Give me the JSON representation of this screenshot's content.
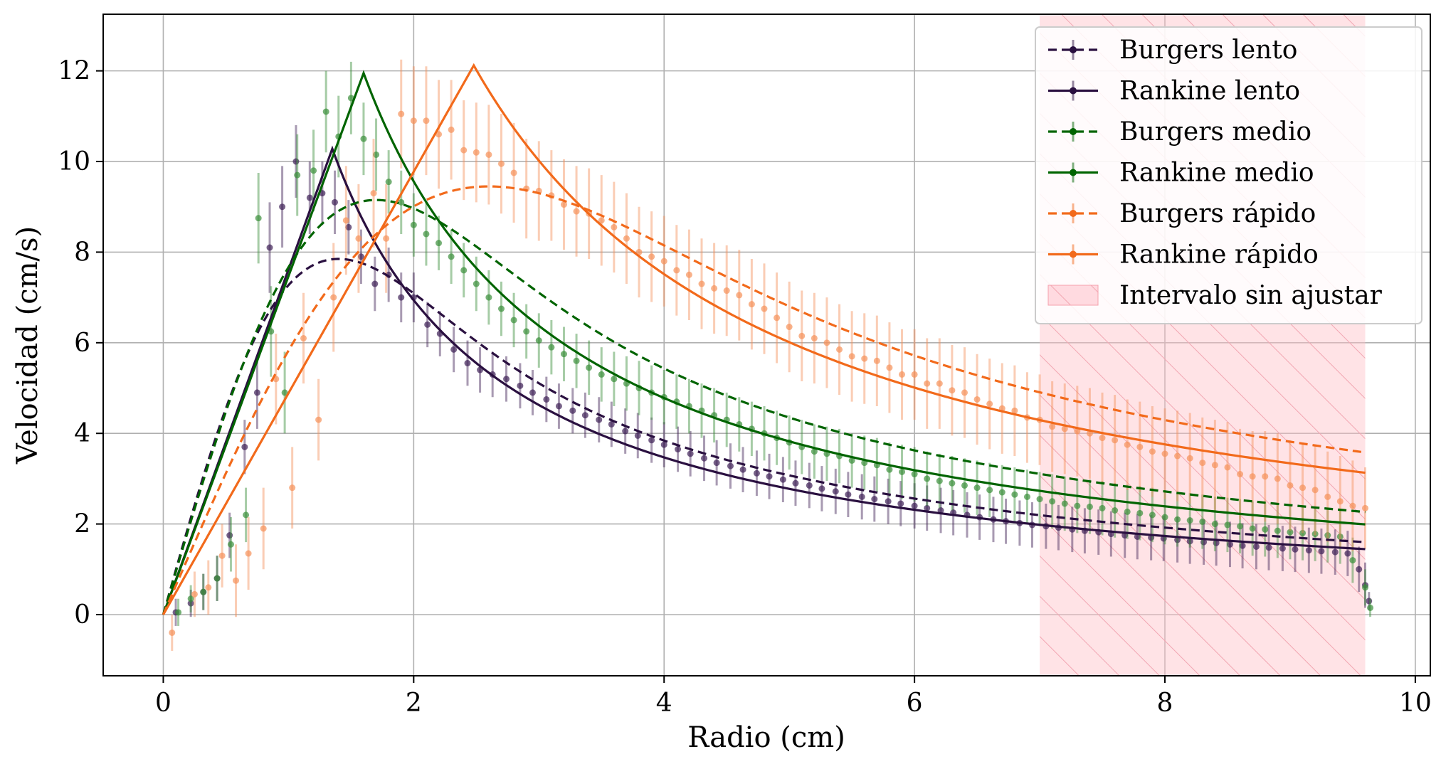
{
  "chart_data": {
    "type": "line",
    "xlabel": "Radio (cm)",
    "ylabel": "Velocidad (cm/s)",
    "xlim": [
      -0.48,
      10.12
    ],
    "ylim": [
      -1.35,
      13.25
    ],
    "xticks": [
      0,
      2,
      4,
      6,
      8,
      10
    ],
    "yticks": [
      0,
      2,
      4,
      6,
      8,
      10,
      12
    ],
    "grid": true,
    "legend_position": "top-right",
    "shaded_region": {
      "label": "Intervalo sin ajustar",
      "x_start": 7.0,
      "x_end": 9.6,
      "color": "#ffc0c8",
      "hatch": "diagonal"
    },
    "series": [
      {
        "name": "Burgers lento",
        "model": "burgers",
        "style": "dashed",
        "color": "#2a1040",
        "peak_r": 1.4,
        "peak_v": 7.85,
        "x_end": 9.6
      },
      {
        "name": "Rankine lento",
        "model": "rankine",
        "style": "solid",
        "color": "#2a1040",
        "peak_r": 1.35,
        "peak_v": 10.28,
        "x_end": 9.6
      },
      {
        "name": "Burgers medio",
        "model": "burgers",
        "style": "dashed",
        "color": "#006400",
        "peak_r": 1.7,
        "peak_v": 9.15,
        "x_end": 9.6
      },
      {
        "name": "Rankine medio",
        "model": "rankine",
        "style": "solid",
        "color": "#006400",
        "peak_r": 1.6,
        "peak_v": 11.95,
        "x_end": 9.6
      },
      {
        "name": "Burgers rápido",
        "model": "burgers",
        "style": "dashed",
        "color": "#f26a1b",
        "peak_r": 2.6,
        "peak_v": 9.45,
        "x_end": 9.6
      },
      {
        "name": "Rankine rápido",
        "model": "rankine",
        "style": "solid",
        "color": "#f26a1b",
        "peak_r": 2.48,
        "peak_v": 12.12,
        "x_end": 9.6
      }
    ],
    "measurements": [
      {
        "name": "lento",
        "color": "#3d1f55",
        "err_alpha": 0.45,
        "x": [
          0.1,
          0.22,
          0.32,
          0.43,
          0.53,
          0.65,
          0.75,
          0.85,
          0.95,
          1.06,
          1.17,
          1.27,
          1.37,
          1.48,
          1.58,
          1.69,
          1.8,
          1.9,
          2.0,
          2.11,
          2.21,
          2.32,
          2.43,
          2.53,
          2.63,
          2.74,
          2.85,
          2.95,
          3.06,
          3.16,
          3.27,
          3.37,
          3.48,
          3.58,
          3.69,
          3.79,
          3.9,
          4.0,
          4.11,
          4.21,
          4.32,
          4.42,
          4.53,
          4.63,
          4.74,
          4.84,
          4.95,
          5.05,
          5.16,
          5.26,
          5.37,
          5.47,
          5.58,
          5.68,
          5.79,
          5.89,
          6.0,
          6.1,
          6.21,
          6.31,
          6.42,
          6.52,
          6.63,
          6.73,
          6.84,
          6.94,
          7.05,
          7.15,
          7.26,
          7.36,
          7.47,
          7.57,
          7.68,
          7.78,
          7.89,
          7.99,
          8.1,
          8.2,
          8.31,
          8.41,
          8.52,
          8.62,
          8.73,
          8.83,
          8.94,
          9.04,
          9.15,
          9.25,
          9.36,
          9.46,
          9.55,
          9.6,
          9.63
        ],
        "y": [
          0.05,
          0.25,
          0.5,
          0.8,
          1.75,
          3.7,
          4.9,
          8.1,
          9.0,
          10.0,
          9.2,
          9.3,
          9.1,
          8.55,
          7.9,
          7.3,
          7.5,
          7.0,
          7.0,
          6.4,
          6.2,
          5.85,
          5.55,
          5.4,
          5.3,
          5.2,
          5.05,
          4.9,
          4.75,
          4.6,
          4.5,
          4.4,
          4.3,
          4.2,
          4.05,
          3.95,
          3.85,
          3.75,
          3.65,
          3.55,
          3.45,
          3.35,
          3.28,
          3.2,
          3.12,
          3.05,
          2.98,
          2.9,
          2.85,
          2.78,
          2.72,
          2.65,
          2.6,
          2.55,
          2.5,
          2.45,
          2.4,
          2.35,
          2.3,
          2.25,
          2.2,
          2.15,
          2.1,
          2.06,
          2.02,
          1.98,
          1.95,
          1.92,
          1.88,
          1.85,
          1.82,
          1.78,
          1.75,
          1.72,
          1.7,
          1.68,
          1.65,
          1.62,
          1.6,
          1.58,
          1.55,
          1.52,
          1.5,
          1.48,
          1.46,
          1.44,
          1.42,
          1.4,
          1.38,
          1.35,
          1.0,
          0.65,
          0.3
        ],
        "err": [
          0.3,
          0.3,
          0.4,
          0.5,
          0.5,
          0.6,
          0.8,
          1.0,
          0.9,
          0.8,
          0.8,
          0.7,
          0.7,
          0.6,
          0.6,
          0.6,
          0.6,
          0.55,
          0.55,
          0.5,
          0.5,
          0.5,
          0.5,
          0.5,
          0.5,
          0.5,
          0.5,
          0.5,
          0.5,
          0.5,
          0.5,
          0.5,
          0.5,
          0.5,
          0.5,
          0.5,
          0.5,
          0.5,
          0.5,
          0.5,
          0.5,
          0.5,
          0.5,
          0.5,
          0.5,
          0.5,
          0.5,
          0.5,
          0.5,
          0.5,
          0.5,
          0.5,
          0.5,
          0.5,
          0.5,
          0.5,
          0.5,
          0.5,
          0.5,
          0.5,
          0.5,
          0.5,
          0.5,
          0.5,
          0.5,
          0.5,
          0.5,
          0.5,
          0.5,
          0.5,
          0.5,
          0.5,
          0.5,
          0.5,
          0.5,
          0.5,
          0.5,
          0.5,
          0.5,
          0.5,
          0.5,
          0.5,
          0.5,
          0.5,
          0.5,
          0.5,
          0.5,
          0.5,
          0.5,
          0.5,
          0.5,
          0.5,
          0.2
        ]
      },
      {
        "name": "medio",
        "color": "#3a8f3a",
        "err_alpha": 0.45,
        "x": [
          0.12,
          0.22,
          0.32,
          0.43,
          0.54,
          0.66,
          0.76,
          0.86,
          0.97,
          1.07,
          1.2,
          1.3,
          1.4,
          1.5,
          1.6,
          1.7,
          1.8,
          1.9,
          2.0,
          2.1,
          2.2,
          2.3,
          2.4,
          2.5,
          2.6,
          2.7,
          2.8,
          2.9,
          3.0,
          3.1,
          3.2,
          3.3,
          3.4,
          3.5,
          3.6,
          3.7,
          3.8,
          3.9,
          4.0,
          4.1,
          4.2,
          4.3,
          4.4,
          4.5,
          4.6,
          4.7,
          4.8,
          4.9,
          5.0,
          5.1,
          5.2,
          5.3,
          5.4,
          5.5,
          5.6,
          5.7,
          5.8,
          5.9,
          6.0,
          6.1,
          6.2,
          6.3,
          6.4,
          6.5,
          6.6,
          6.7,
          6.8,
          6.9,
          7.0,
          7.1,
          7.2,
          7.3,
          7.4,
          7.5,
          7.6,
          7.7,
          7.8,
          7.9,
          8.0,
          8.1,
          8.2,
          8.3,
          8.4,
          8.5,
          8.6,
          8.7,
          8.8,
          8.9,
          9.0,
          9.1,
          9.2,
          9.3,
          9.4,
          9.5,
          9.6,
          9.64
        ],
        "y": [
          0.05,
          0.35,
          0.5,
          0.8,
          1.55,
          2.2,
          8.75,
          6.25,
          4.9,
          9.7,
          9.8,
          11.1,
          10.55,
          11.4,
          10.5,
          10.15,
          9.55,
          9.1,
          8.6,
          8.4,
          8.2,
          7.9,
          7.6,
          7.3,
          7.0,
          6.75,
          6.5,
          6.25,
          6.05,
          5.9,
          5.75,
          5.6,
          5.45,
          5.3,
          5.2,
          5.1,
          5.0,
          4.9,
          4.8,
          4.7,
          4.6,
          4.5,
          4.4,
          4.3,
          4.2,
          4.1,
          4.0,
          3.9,
          3.8,
          3.7,
          3.6,
          3.55,
          3.5,
          3.4,
          3.35,
          3.3,
          3.2,
          3.15,
          3.1,
          3.0,
          2.95,
          2.9,
          2.85,
          2.8,
          2.75,
          2.7,
          2.65,
          2.6,
          2.55,
          2.5,
          2.45,
          2.4,
          2.38,
          2.35,
          2.3,
          2.27,
          2.24,
          2.2,
          2.15,
          2.1,
          2.08,
          2.05,
          2.0,
          1.98,
          1.95,
          1.9,
          1.88,
          1.85,
          1.82,
          1.8,
          1.78,
          1.75,
          1.72,
          1.2,
          0.6,
          0.15
        ],
        "err": [
          0.3,
          0.3,
          0.4,
          0.5,
          0.6,
          0.6,
          1.0,
          1.0,
          0.9,
          0.9,
          0.9,
          0.9,
          0.9,
          0.8,
          0.8,
          0.8,
          0.7,
          0.7,
          0.7,
          0.7,
          0.6,
          0.6,
          0.6,
          0.6,
          0.6,
          0.6,
          0.6,
          0.6,
          0.6,
          0.6,
          0.6,
          0.6,
          0.6,
          0.6,
          0.6,
          0.6,
          0.6,
          0.6,
          0.6,
          0.6,
          0.6,
          0.6,
          0.6,
          0.6,
          0.6,
          0.6,
          0.6,
          0.6,
          0.6,
          0.6,
          0.6,
          0.6,
          0.6,
          0.6,
          0.6,
          0.6,
          0.6,
          0.6,
          0.6,
          0.6,
          0.6,
          0.6,
          0.6,
          0.6,
          0.6,
          0.6,
          0.6,
          0.6,
          0.6,
          0.6,
          0.6,
          0.6,
          0.6,
          0.6,
          0.6,
          0.6,
          0.6,
          0.6,
          0.6,
          0.6,
          0.6,
          0.6,
          0.6,
          0.6,
          0.6,
          0.6,
          0.6,
          0.6,
          0.6,
          0.6,
          0.6,
          0.6,
          0.6,
          0.5,
          0.4,
          0.2
        ]
      },
      {
        "name": "rápido",
        "color": "#f5915a",
        "err_alpha": 0.45,
        "x": [
          0.07,
          0.25,
          0.36,
          0.47,
          0.58,
          0.68,
          0.8,
          0.9,
          1.03,
          1.12,
          1.24,
          1.36,
          1.46,
          1.56,
          1.68,
          1.78,
          1.9,
          2.0,
          2.1,
          2.2,
          2.3,
          2.4,
          2.5,
          2.6,
          2.7,
          2.8,
          2.9,
          3.0,
          3.1,
          3.2,
          3.3,
          3.4,
          3.5,
          3.6,
          3.7,
          3.8,
          3.9,
          4.0,
          4.1,
          4.2,
          4.3,
          4.4,
          4.5,
          4.6,
          4.7,
          4.8,
          4.9,
          5.0,
          5.1,
          5.2,
          5.3,
          5.4,
          5.5,
          5.6,
          5.7,
          5.8,
          5.9,
          6.0,
          6.1,
          6.2,
          6.3,
          6.4,
          6.5,
          6.6,
          6.7,
          6.8,
          6.9,
          7.0,
          7.1,
          7.2,
          7.3,
          7.4,
          7.5,
          7.6,
          7.7,
          7.8,
          7.9,
          8.0,
          8.1,
          8.2,
          8.3,
          8.4,
          8.5,
          8.6,
          8.7,
          8.8,
          8.9,
          9.0,
          9.1,
          9.2,
          9.3,
          9.4,
          9.5,
          9.6
        ],
        "y": [
          -0.4,
          0.45,
          0.6,
          1.3,
          0.75,
          1.35,
          1.9,
          5.2,
          2.8,
          6.1,
          4.3,
          7.0,
          8.7,
          8.3,
          9.3,
          8.3,
          11.05,
          10.9,
          10.9,
          10.6,
          10.7,
          10.25,
          10.2,
          10.15,
          9.95,
          9.75,
          9.4,
          9.35,
          9.25,
          9.05,
          8.9,
          8.85,
          8.7,
          8.55,
          8.3,
          8.0,
          7.9,
          7.8,
          7.6,
          7.5,
          7.3,
          7.2,
          7.15,
          7.05,
          6.85,
          6.75,
          6.55,
          6.35,
          6.15,
          6.1,
          6.0,
          5.85,
          5.7,
          5.65,
          5.6,
          5.45,
          5.3,
          5.3,
          5.1,
          5.1,
          4.95,
          4.9,
          4.75,
          4.65,
          4.55,
          4.5,
          4.35,
          4.3,
          4.15,
          4.1,
          4.05,
          4.0,
          3.9,
          3.85,
          3.75,
          3.7,
          3.6,
          3.55,
          3.5,
          3.45,
          3.35,
          3.3,
          3.25,
          3.1,
          3.05,
          3.05,
          3.0,
          2.85,
          2.8,
          2.75,
          2.6,
          2.5,
          2.4,
          2.35
        ],
        "err": [
          0.4,
          0.5,
          0.6,
          0.7,
          0.8,
          0.8,
          0.9,
          1.0,
          0.9,
          1.0,
          0.9,
          1.2,
          1.2,
          1.2,
          1.2,
          1.2,
          1.2,
          1.2,
          1.2,
          1.2,
          1.1,
          1.1,
          1.1,
          1.1,
          1.1,
          1.1,
          1.1,
          1.1,
          1.0,
          1.0,
          1.0,
          1.0,
          1.0,
          1.0,
          1.0,
          1.0,
          1.0,
          1.0,
          1.0,
          1.0,
          1.0,
          1.0,
          1.0,
          1.0,
          1.0,
          1.0,
          1.0,
          1.0,
          1.0,
          1.0,
          1.0,
          1.0,
          1.0,
          1.0,
          1.0,
          1.0,
          1.0,
          1.0,
          1.0,
          1.0,
          1.0,
          1.0,
          1.0,
          1.0,
          1.0,
          1.0,
          1.0,
          1.0,
          1.0,
          1.0,
          1.0,
          1.0,
          1.0,
          1.0,
          1.0,
          1.0,
          1.0,
          1.0,
          1.0,
          1.0,
          1.0,
          1.0,
          1.0,
          1.0,
          1.0,
          1.0,
          1.0,
          1.0,
          1.0,
          1.0,
          1.0,
          1.0,
          1.0,
          0.9
        ]
      }
    ]
  }
}
